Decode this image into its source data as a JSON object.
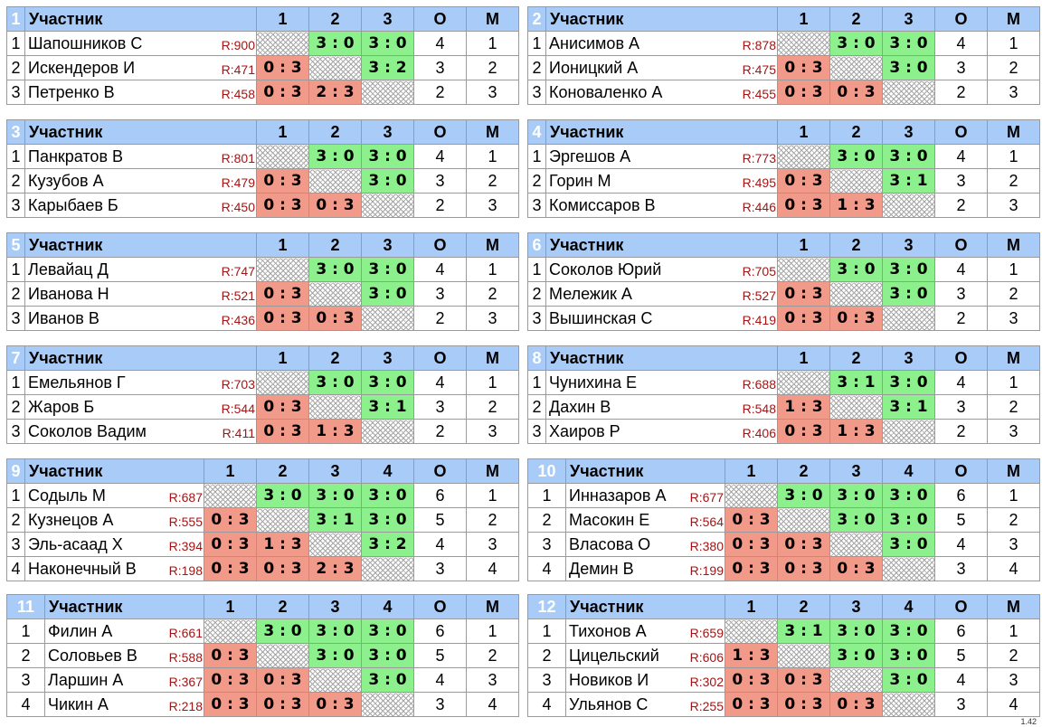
{
  "header": {
    "participant": "Участник",
    "points": "О",
    "place": "М"
  },
  "version": "1.42",
  "groups": [
    {
      "number": "1",
      "players": [
        {
          "pos": "1",
          "name": "Шапошников С",
          "rating": "R:900",
          "results": [
            "",
            "3 : 0",
            "3 : 0"
          ],
          "points": "4",
          "place": "1"
        },
        {
          "pos": "2",
          "name": "Искендеров И",
          "rating": "R:471",
          "results": [
            "0 : 3",
            "",
            "3 : 2"
          ],
          "points": "3",
          "place": "2"
        },
        {
          "pos": "3",
          "name": "Петренко В",
          "rating": "R:458",
          "results": [
            "0 : 3",
            "2 : 3",
            ""
          ],
          "points": "2",
          "place": "3"
        }
      ]
    },
    {
      "number": "2",
      "players": [
        {
          "pos": "1",
          "name": "Анисимов А",
          "rating": "R:878",
          "results": [
            "",
            "3 : 0",
            "3 : 0"
          ],
          "points": "4",
          "place": "1"
        },
        {
          "pos": "2",
          "name": "Ионицкий А",
          "rating": "R:475",
          "results": [
            "0 : 3",
            "",
            "3 : 0"
          ],
          "points": "3",
          "place": "2"
        },
        {
          "pos": "3",
          "name": "Коноваленко А",
          "rating": "R:455",
          "results": [
            "0 : 3",
            "0 : 3",
            ""
          ],
          "points": "2",
          "place": "3"
        }
      ]
    },
    {
      "number": "3",
      "players": [
        {
          "pos": "1",
          "name": "Панкратов В",
          "rating": "R:801",
          "results": [
            "",
            "3 : 0",
            "3 : 0"
          ],
          "points": "4",
          "place": "1"
        },
        {
          "pos": "2",
          "name": "Кузубов А",
          "rating": "R:479",
          "results": [
            "0 : 3",
            "",
            "3 : 0"
          ],
          "points": "3",
          "place": "2"
        },
        {
          "pos": "3",
          "name": "Карыбаев Б",
          "rating": "R:450",
          "results": [
            "0 : 3",
            "0 : 3",
            ""
          ],
          "points": "2",
          "place": "3"
        }
      ]
    },
    {
      "number": "4",
      "players": [
        {
          "pos": "1",
          "name": "Эргешов А",
          "rating": "R:773",
          "results": [
            "",
            "3 : 0",
            "3 : 0"
          ],
          "points": "4",
          "place": "1"
        },
        {
          "pos": "2",
          "name": "Горин М",
          "rating": "R:495",
          "results": [
            "0 : 3",
            "",
            "3 : 1"
          ],
          "points": "3",
          "place": "2"
        },
        {
          "pos": "3",
          "name": "Комиссаров В",
          "rating": "R:446",
          "results": [
            "0 : 3",
            "1 : 3",
            ""
          ],
          "points": "2",
          "place": "3"
        }
      ]
    },
    {
      "number": "5",
      "players": [
        {
          "pos": "1",
          "name": "Левайац Д",
          "rating": "R:747",
          "results": [
            "",
            "3 : 0",
            "3 : 0"
          ],
          "points": "4",
          "place": "1"
        },
        {
          "pos": "2",
          "name": "Иванова Н",
          "rating": "R:521",
          "results": [
            "0 : 3",
            "",
            "3 : 0"
          ],
          "points": "3",
          "place": "2"
        },
        {
          "pos": "3",
          "name": "Иванов В",
          "rating": "R:436",
          "results": [
            "0 : 3",
            "0 : 3",
            ""
          ],
          "points": "2",
          "place": "3"
        }
      ]
    },
    {
      "number": "6",
      "players": [
        {
          "pos": "1",
          "name": "Соколов Юрий",
          "rating": "R:705",
          "results": [
            "",
            "3 : 0",
            "3 : 0"
          ],
          "points": "4",
          "place": "1"
        },
        {
          "pos": "2",
          "name": "Мележик А",
          "rating": "R:527",
          "results": [
            "0 : 3",
            "",
            "3 : 0"
          ],
          "points": "3",
          "place": "2"
        },
        {
          "pos": "3",
          "name": "Вышинская С",
          "rating": "R:419",
          "results": [
            "0 : 3",
            "0 : 3",
            ""
          ],
          "points": "2",
          "place": "3"
        }
      ]
    },
    {
      "number": "7",
      "players": [
        {
          "pos": "1",
          "name": "Емельянов Г",
          "rating": "R:703",
          "results": [
            "",
            "3 : 0",
            "3 : 0"
          ],
          "points": "4",
          "place": "1"
        },
        {
          "pos": "2",
          "name": "Жаров Б",
          "rating": "R:544",
          "results": [
            "0 : 3",
            "",
            "3 : 1"
          ],
          "points": "3",
          "place": "2"
        },
        {
          "pos": "3",
          "name": "Соколов Вадим",
          "rating": "R:411",
          "results": [
            "0 : 3",
            "1 : 3",
            ""
          ],
          "points": "2",
          "place": "3"
        }
      ]
    },
    {
      "number": "8",
      "players": [
        {
          "pos": "1",
          "name": "Чунихина Е",
          "rating": "R:688",
          "results": [
            "",
            "3 : 1",
            "3 : 0"
          ],
          "points": "4",
          "place": "1"
        },
        {
          "pos": "2",
          "name": "Дахин В",
          "rating": "R:548",
          "results": [
            "1 : 3",
            "",
            "3 : 1"
          ],
          "points": "3",
          "place": "2"
        },
        {
          "pos": "3",
          "name": "Хаиров Р",
          "rating": "R:406",
          "results": [
            "0 : 3",
            "1 : 3",
            ""
          ],
          "points": "2",
          "place": "3"
        }
      ]
    },
    {
      "number": "9",
      "players": [
        {
          "pos": "1",
          "name": "Содыль М",
          "rating": "R:687",
          "results": [
            "",
            "3 : 0",
            "3 : 0",
            "3 : 0"
          ],
          "points": "6",
          "place": "1"
        },
        {
          "pos": "2",
          "name": "Кузнецов А",
          "rating": "R:555",
          "results": [
            "0 : 3",
            "",
            "3 : 1",
            "3 : 0"
          ],
          "points": "5",
          "place": "2"
        },
        {
          "pos": "3",
          "name": "Эль-асаад Х",
          "rating": "R:394",
          "results": [
            "0 : 3",
            "1 : 3",
            "",
            "3 : 2"
          ],
          "points": "4",
          "place": "3"
        },
        {
          "pos": "4",
          "name": "Наконечный В",
          "rating": "R:198",
          "results": [
            "0 : 3",
            "0 : 3",
            "2 : 3",
            ""
          ],
          "points": "3",
          "place": "4"
        }
      ]
    },
    {
      "number": "10",
      "players": [
        {
          "pos": "1",
          "name": "Инназаров А",
          "rating": "R:677",
          "results": [
            "",
            "3 : 0",
            "3 : 0",
            "3 : 0"
          ],
          "points": "6",
          "place": "1"
        },
        {
          "pos": "2",
          "name": "Масокин Е",
          "rating": "R:564",
          "results": [
            "0 : 3",
            "",
            "3 : 0",
            "3 : 0"
          ],
          "points": "5",
          "place": "2"
        },
        {
          "pos": "3",
          "name": "Власова О",
          "rating": "R:380",
          "results": [
            "0 : 3",
            "0 : 3",
            "",
            "3 : 0"
          ],
          "points": "4",
          "place": "3"
        },
        {
          "pos": "4",
          "name": "Демин В",
          "rating": "R:199",
          "results": [
            "0 : 3",
            "0 : 3",
            "0 : 3",
            ""
          ],
          "points": "3",
          "place": "4"
        }
      ]
    },
    {
      "number": "11",
      "players": [
        {
          "pos": "1",
          "name": "Филин А",
          "rating": "R:661",
          "results": [
            "",
            "3 : 0",
            "3 : 0",
            "3 : 0"
          ],
          "points": "6",
          "place": "1"
        },
        {
          "pos": "2",
          "name": "Соловьев В",
          "rating": "R:588",
          "results": [
            "0 : 3",
            "",
            "3 : 0",
            "3 : 0"
          ],
          "points": "5",
          "place": "2"
        },
        {
          "pos": "3",
          "name": "Ларшин А",
          "rating": "R:367",
          "results": [
            "0 : 3",
            "0 : 3",
            "",
            "3 : 0"
          ],
          "points": "4",
          "place": "3"
        },
        {
          "pos": "4",
          "name": "Чикин А",
          "rating": "R:218",
          "results": [
            "0 : 3",
            "0 : 3",
            "0 : 3",
            ""
          ],
          "points": "3",
          "place": "4"
        }
      ]
    },
    {
      "number": "12",
      "players": [
        {
          "pos": "1",
          "name": "Тихонов А",
          "rating": "R:659",
          "results": [
            "",
            "3 : 1",
            "3 : 0",
            "3 : 0"
          ],
          "points": "6",
          "place": "1"
        },
        {
          "pos": "2",
          "name": "Цицельский",
          "rating": "R:606",
          "results": [
            "1 : 3",
            "",
            "3 : 0",
            "3 : 0"
          ],
          "points": "5",
          "place": "2"
        },
        {
          "pos": "3",
          "name": "Новиков И",
          "rating": "R:302",
          "results": [
            "0 : 3",
            "0 : 3",
            "",
            "3 : 0"
          ],
          "points": "4",
          "place": "3"
        },
        {
          "pos": "4",
          "name": "Ульянов С",
          "rating": "R:255",
          "results": [
            "0 : 3",
            "0 : 3",
            "0 : 3",
            ""
          ],
          "points": "3",
          "place": "4"
        }
      ]
    }
  ]
}
